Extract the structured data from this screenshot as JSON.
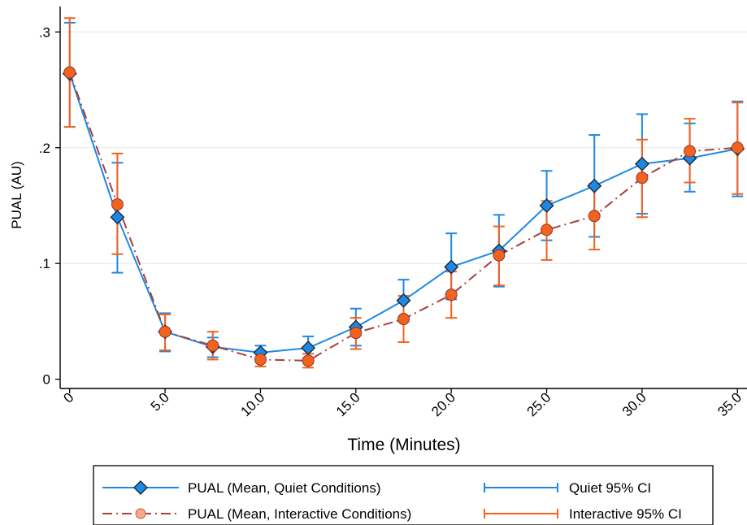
{
  "chart_data": {
    "type": "line",
    "title": "",
    "xlabel": "Time (Minutes)",
    "ylabel": "PUAL (AU)",
    "xlim": [
      -0.5,
      35.5
    ],
    "ylim": [
      -0.008,
      0.322
    ],
    "x_ticks": [
      0,
      5,
      10,
      15,
      20,
      25,
      30,
      35
    ],
    "x_tick_labels": [
      "0",
      "5.0",
      "10.0",
      "15.0",
      "20.0",
      "25.0",
      "30.0",
      "35.0"
    ],
    "y_ticks": [
      0,
      0.1,
      0.2,
      0.3
    ],
    "y_tick_labels": [
      "0",
      ".1",
      ".2",
      ".3"
    ],
    "grid": true,
    "legend_position": "bottom",
    "x": [
      0,
      2.5,
      5,
      7.5,
      10,
      12.5,
      15,
      17.5,
      20,
      22.5,
      25,
      27.5,
      30,
      32.5,
      35
    ],
    "series": [
      {
        "name": "PUAL (Mean, Quiet Conditions)",
        "ci_name": "Quiet 95% CI",
        "line_color": "#1e88e5",
        "marker_color": "#1e88e5",
        "marker": "diamond",
        "line_style": "solid",
        "values": [
          0.264,
          0.14,
          0.041,
          0.028,
          0.023,
          0.027,
          0.045,
          0.068,
          0.097,
          0.111,
          0.15,
          0.167,
          0.186,
          0.191,
          0.199
        ],
        "ci_low": [
          0.218,
          0.092,
          0.024,
          0.019,
          0.017,
          0.018,
          0.029,
          0.05,
          0.069,
          0.08,
          0.12,
          0.123,
          0.143,
          0.162,
          0.158
        ],
        "ci_high": [
          0.308,
          0.187,
          0.057,
          0.036,
          0.029,
          0.037,
          0.061,
          0.086,
          0.126,
          0.142,
          0.18,
          0.211,
          0.229,
          0.221,
          0.24
        ]
      },
      {
        "name": "PUAL (Mean, Interactive Conditions)",
        "ci_name": "Interactive 95% CI",
        "line_color": "#a8413b",
        "marker_color": "#f4621f",
        "marker": "circle",
        "line_style": "dashdot",
        "values": [
          0.265,
          0.151,
          0.041,
          0.029,
          0.017,
          0.016,
          0.04,
          0.052,
          0.073,
          0.107,
          0.129,
          0.141,
          0.174,
          0.197,
          0.2
        ],
        "ci_low": [
          0.218,
          0.108,
          0.025,
          0.017,
          0.011,
          0.01,
          0.026,
          0.032,
          0.053,
          0.081,
          0.103,
          0.112,
          0.14,
          0.17,
          0.16
        ],
        "ci_high": [
          0.312,
          0.195,
          0.056,
          0.041,
          0.023,
          0.022,
          0.053,
          0.072,
          0.093,
          0.132,
          0.154,
          0.169,
          0.207,
          0.225,
          0.239
        ]
      }
    ]
  }
}
